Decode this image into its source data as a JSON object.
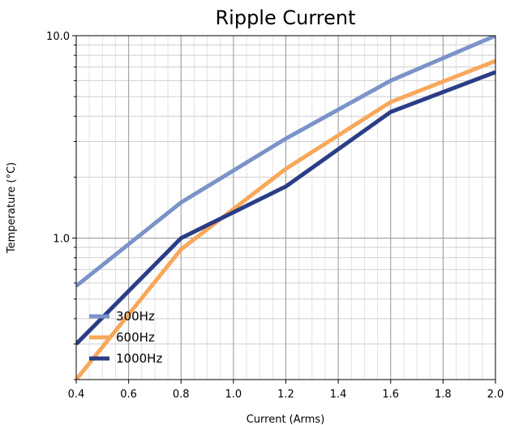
{
  "chart_data": {
    "type": "line",
    "title": "Ripple Current",
    "xlabel": "Current (Arms)",
    "ylabel": "Temperature (°C)",
    "x_scale": "linear",
    "y_scale": "log",
    "xlim": [
      0.4,
      2.0
    ],
    "ylim": [
      0.2,
      10.0
    ],
    "x_ticks": [
      0.4,
      0.6,
      0.8,
      1.0,
      1.2,
      1.4,
      1.6,
      1.8,
      2.0
    ],
    "x_tick_labels": [
      "0.4",
      "0.6",
      "0.8",
      "1.0",
      "1.2",
      "1.4",
      "1.6",
      "1.8",
      "2.0"
    ],
    "y_ticks": [
      1.0,
      10.0
    ],
    "y_tick_labels": [
      "1.0",
      "10.0"
    ],
    "grid": true,
    "legend_position": "bottom-left",
    "x": [
      0.4,
      0.8,
      1.2,
      1.6,
      2.0
    ],
    "series": [
      {
        "name": "300Hz",
        "color": "#7b93c8",
        "values": [
          0.58,
          1.5,
          3.1,
          6.0,
          10.0
        ]
      },
      {
        "name": "600Hz",
        "color": "#f7a85a",
        "values": [
          0.2,
          0.88,
          2.2,
          4.7,
          7.5
        ]
      },
      {
        "name": "1000Hz",
        "color": "#2b3d86",
        "values": [
          0.3,
          1.0,
          1.8,
          4.2,
          6.6
        ]
      }
    ]
  }
}
